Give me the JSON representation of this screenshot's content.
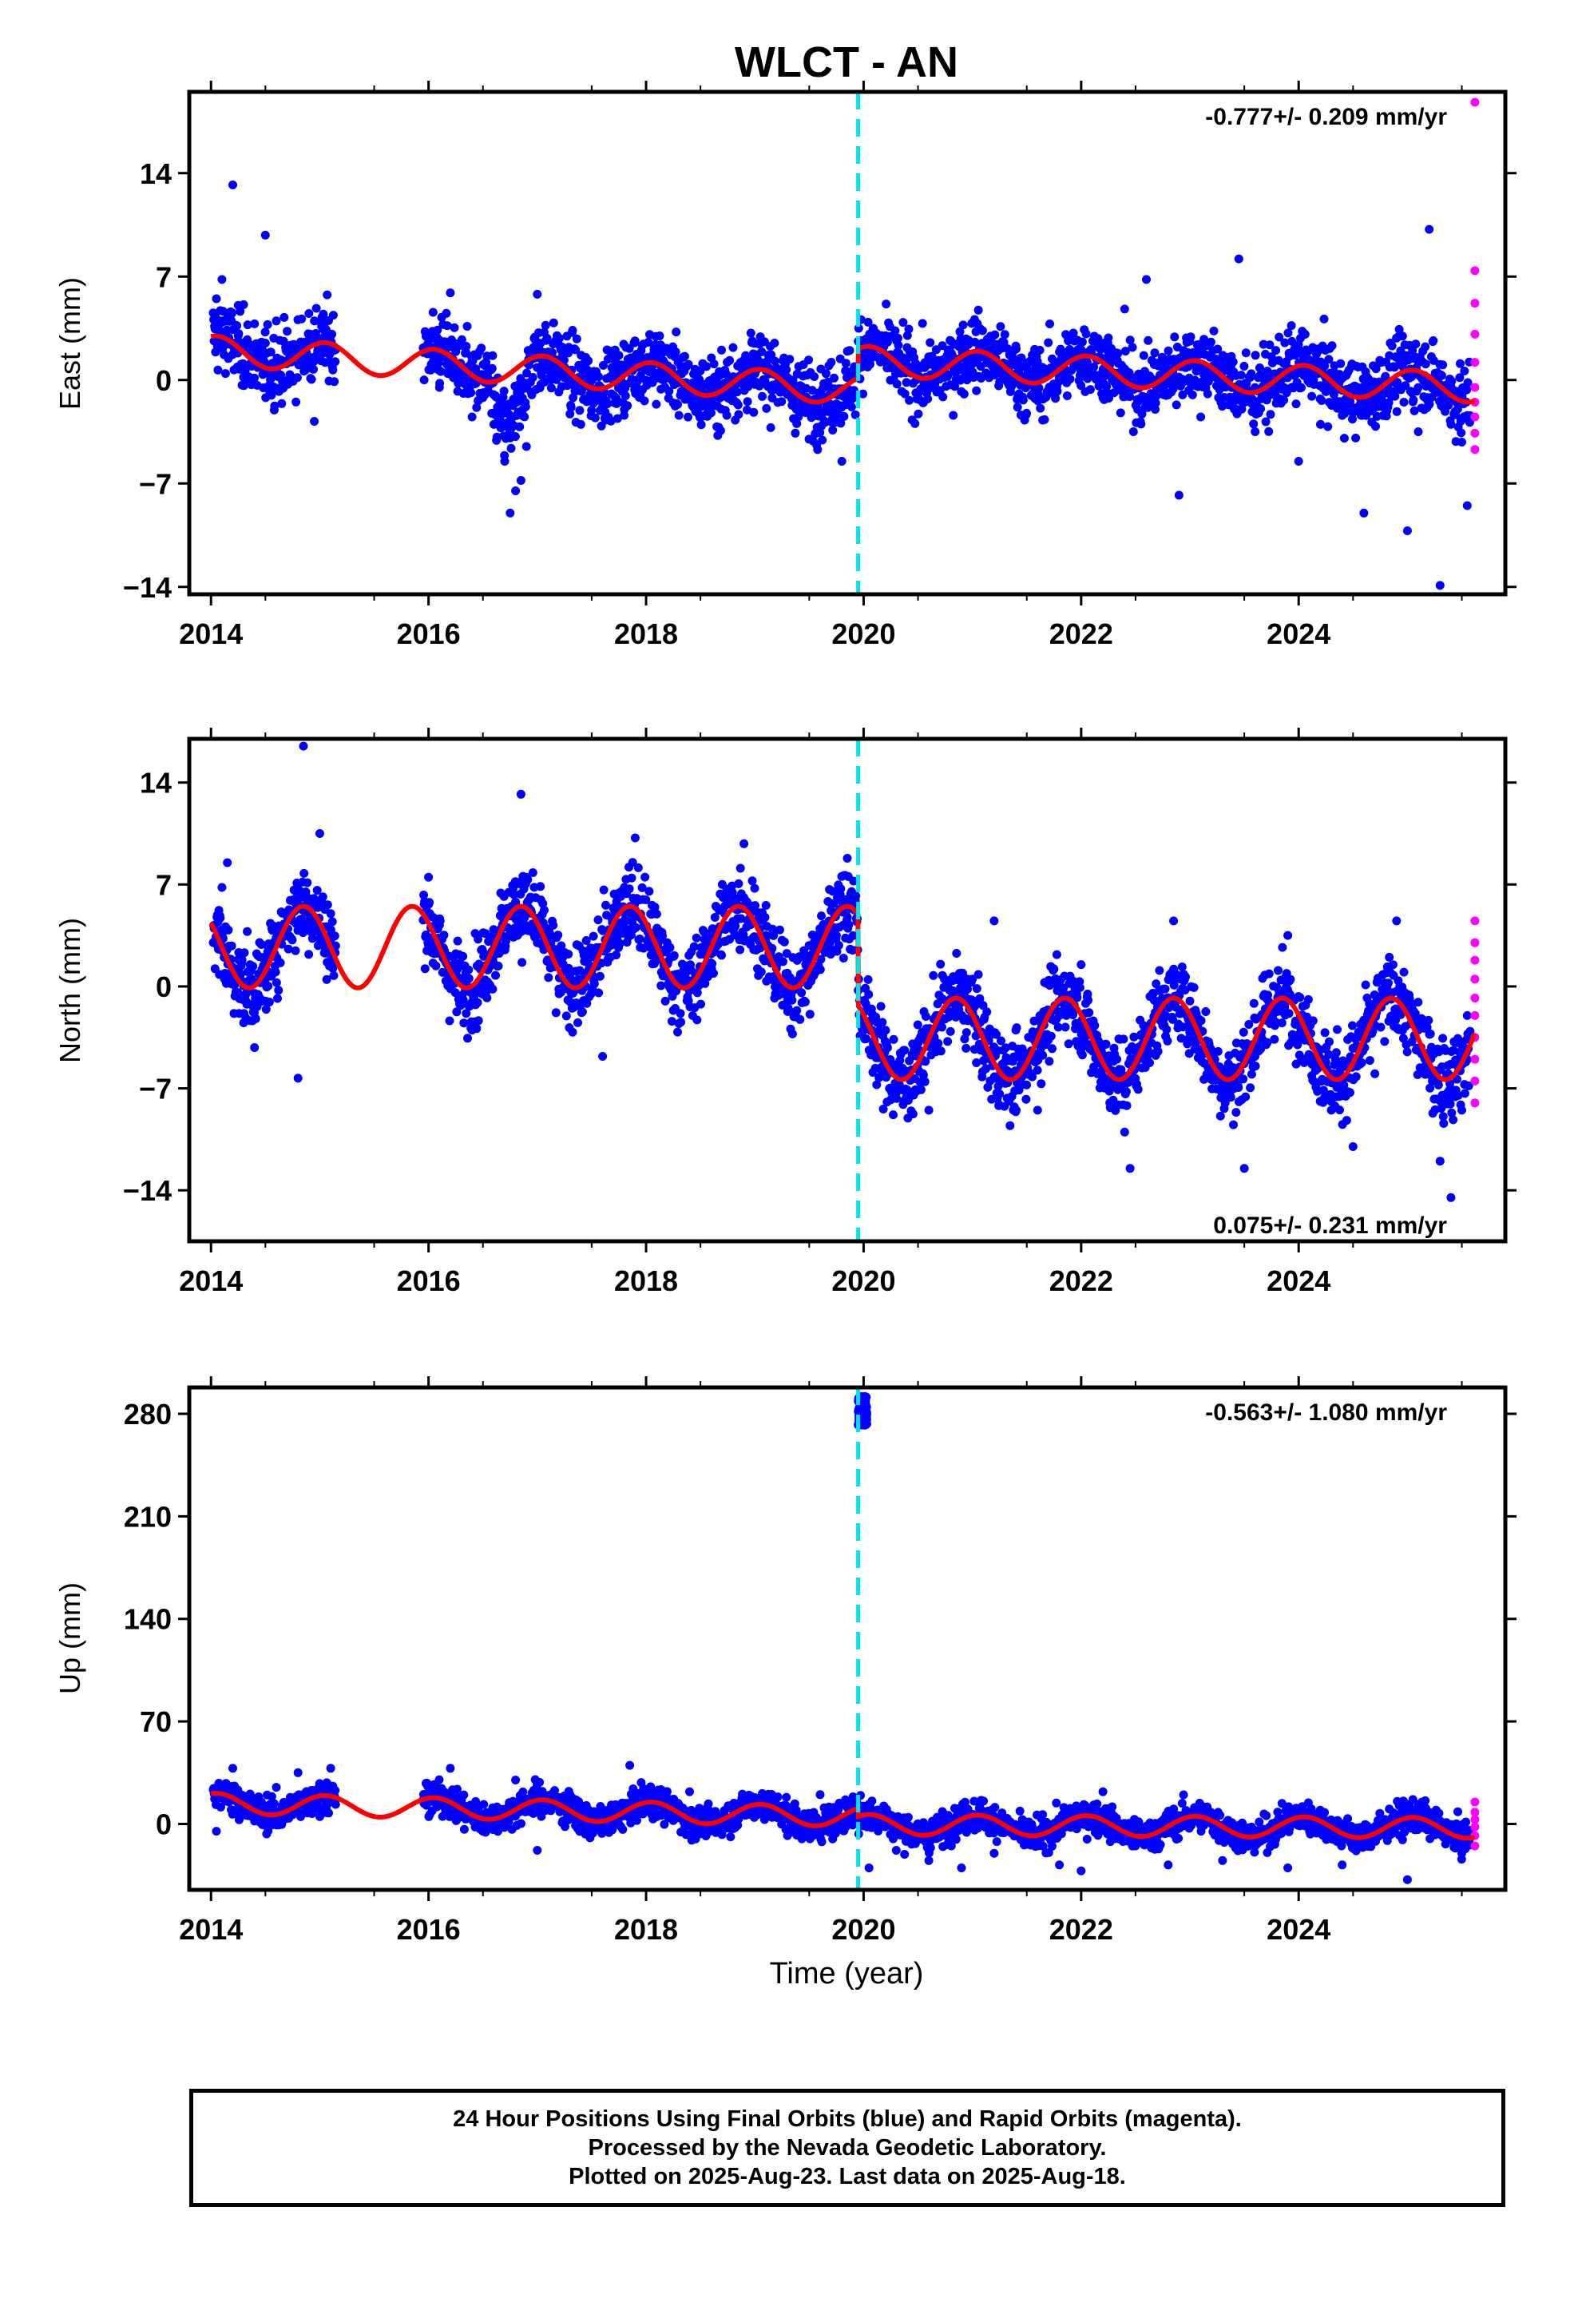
{
  "title": "WLCT - AN",
  "xlabel": "Time (year)",
  "colors": {
    "final_orbits": "#0000ff",
    "rapid_orbits": "#ff00ff",
    "model": "#ff0000",
    "offset_line": "#00e5e5",
    "frame": "#000000"
  },
  "x_ticks": [
    "2014",
    "2016",
    "2018",
    "2020",
    "2022",
    "2024"
  ],
  "chart_data": [
    {
      "type": "scatter",
      "ylabel": "East (mm)",
      "xlim": [
        2013.8,
        2025.9
      ],
      "ylim": [
        -14.5,
        19.5
      ],
      "y_ticks": [
        -14,
        -7,
        0,
        7,
        14
      ],
      "y_tick_labels": [
        "−14",
        "−7",
        "0",
        "7",
        "14"
      ],
      "rate_label": "-0.777+/- 0.209 mm/yr",
      "rate_position": "top-right",
      "offset_epoch": 2019.95,
      "series": [
        {
          "role": "final",
          "points": [
            [
              2014.05,
              5.5
            ],
            [
              2014.1,
              6.8
            ],
            [
              2014.15,
              4.2
            ],
            [
              2014.2,
              13.2
            ],
            [
              2014.25,
              3.0
            ],
            [
              2014.3,
              5.1
            ],
            [
              2014.4,
              3.8
            ],
            [
              2014.5,
              2.5
            ],
            [
              2014.6,
              4.0
            ],
            [
              2014.7,
              3.3
            ],
            [
              2014.8,
              2.1
            ],
            [
              2014.9,
              4.5
            ],
            [
              2015.0,
              2.8
            ],
            [
              2015.1,
              1.2
            ],
            [
              2015.05,
              3.5
            ],
            [
              2014.95,
              -2.8
            ],
            [
              2014.5,
              9.8
            ],
            [
              2016.0,
              3.1
            ],
            [
              2016.1,
              -0.5
            ],
            [
              2016.2,
              5.9
            ],
            [
              2016.3,
              1.0
            ],
            [
              2016.4,
              -2.5
            ],
            [
              2016.5,
              -1.2
            ],
            [
              2016.6,
              -3.0
            ],
            [
              2016.7,
              -5.5
            ],
            [
              2016.75,
              -9.0
            ],
            [
              2016.8,
              -7.5
            ],
            [
              2016.85,
              -6.8
            ],
            [
              2016.9,
              -4.5
            ],
            [
              2016.95,
              -1.0
            ],
            [
              2017.0,
              5.8
            ],
            [
              2017.1,
              1.9
            ],
            [
              2017.2,
              0.5
            ],
            [
              2017.3,
              -2.3
            ],
            [
              2017.4,
              -3.0
            ],
            [
              2017.6,
              -1.5
            ],
            [
              2017.8,
              -2.0
            ],
            [
              2018.0,
              1.2
            ],
            [
              2018.2,
              0.5
            ],
            [
              2018.4,
              -0.8
            ],
            [
              2018.6,
              1.5
            ],
            [
              2018.8,
              2.2
            ],
            [
              2019.0,
              -0.3
            ],
            [
              2019.2,
              0.8
            ],
            [
              2019.4,
              -2.5
            ],
            [
              2019.6,
              -1.4
            ],
            [
              2019.8,
              -5.5
            ],
            [
              2019.9,
              -1.0
            ],
            [
              2020.05,
              1.8
            ],
            [
              2020.2,
              3.0
            ],
            [
              2020.4,
              2.2
            ],
            [
              2020.6,
              0.2
            ],
            [
              2020.9,
              1.5
            ],
            [
              2021.2,
              0.9
            ],
            [
              2021.4,
              2.3
            ],
            [
              2021.6,
              -0.5
            ],
            [
              2021.8,
              1.9
            ],
            [
              2022.0,
              0.8
            ],
            [
              2022.2,
              -1.2
            ],
            [
              2022.4,
              4.8
            ],
            [
              2022.6,
              6.8
            ],
            [
              2022.8,
              -1.0
            ],
            [
              2022.9,
              -7.8
            ],
            [
              2023.1,
              -2.5
            ],
            [
              2023.3,
              -0.4
            ],
            [
              2023.45,
              8.2
            ],
            [
              2023.6,
              -3.5
            ],
            [
              2023.8,
              -1.2
            ],
            [
              2024.0,
              -5.5
            ],
            [
              2024.2,
              -3.0
            ],
            [
              2024.4,
              -2.4
            ],
            [
              2024.6,
              -9.0
            ],
            [
              2024.8,
              -2.0
            ],
            [
              2025.0,
              -10.2
            ],
            [
              2025.1,
              -3.5
            ],
            [
              2025.2,
              10.2
            ],
            [
              2025.3,
              -13.9
            ],
            [
              2025.4,
              -3.0
            ],
            [
              2025.5,
              -4.2
            ],
            [
              2025.55,
              -8.5
            ]
          ]
        },
        {
          "role": "rapid",
          "points": [
            [
              2025.62,
              18.8
            ],
            [
              2025.62,
              7.4
            ],
            [
              2025.62,
              5.2
            ],
            [
              2025.62,
              3.1
            ],
            [
              2025.62,
              1.2
            ],
            [
              2025.62,
              -0.5
            ],
            [
              2025.62,
              -1.5
            ],
            [
              2025.62,
              -2.5
            ],
            [
              2025.62,
              -3.6
            ],
            [
              2025.62,
              -4.7
            ]
          ]
        }
      ]
    },
    {
      "type": "scatter",
      "ylabel": "North (mm)",
      "xlim": [
        2013.8,
        2025.9
      ],
      "ylim": [
        -17.5,
        17.0
      ],
      "y_ticks": [
        -14,
        -7,
        0,
        7,
        14
      ],
      "y_tick_labels": [
        "−14",
        "−7",
        "0",
        "7",
        "14"
      ],
      "rate_label": "0.075+/- 0.231 mm/yr",
      "rate_position": "bottom-right",
      "offset_epoch": 2019.95,
      "series": [
        {
          "role": "final",
          "points": [
            [
              2014.05,
              3.0
            ],
            [
              2014.1,
              6.8
            ],
            [
              2014.15,
              8.5
            ],
            [
              2014.3,
              -2.5
            ],
            [
              2014.4,
              -4.2
            ],
            [
              2014.5,
              -1.0
            ],
            [
              2014.6,
              2.0
            ],
            [
              2014.8,
              -6.3
            ],
            [
              2014.9,
              5.5
            ],
            [
              2014.85,
              16.5
            ],
            [
              2015.0,
              10.5
            ],
            [
              2015.1,
              5.0
            ],
            [
              2016.0,
              7.5
            ],
            [
              2016.1,
              4.2
            ],
            [
              2016.3,
              -1.0
            ],
            [
              2016.4,
              -3.0
            ],
            [
              2016.6,
              3.5
            ],
            [
              2016.8,
              5.8
            ],
            [
              2016.85,
              13.2
            ],
            [
              2017.0,
              3.0
            ],
            [
              2017.2,
              -0.5
            ],
            [
              2017.5,
              0.8
            ],
            [
              2017.6,
              -4.8
            ],
            [
              2017.8,
              6.8
            ],
            [
              2017.9,
              10.2
            ],
            [
              2018.1,
              4.0
            ],
            [
              2018.3,
              0.0
            ],
            [
              2018.5,
              2.2
            ],
            [
              2018.7,
              7.0
            ],
            [
              2018.9,
              9.8
            ],
            [
              2019.1,
              3.5
            ],
            [
              2019.3,
              -1.0
            ],
            [
              2019.5,
              1.5
            ],
            [
              2019.7,
              5.2
            ],
            [
              2019.85,
              8.8
            ],
            [
              2020.05,
              -2.5
            ],
            [
              2020.2,
              -5.0
            ],
            [
              2020.4,
              -7.5
            ],
            [
              2020.6,
              -8.5
            ],
            [
              2020.8,
              -2.0
            ],
            [
              2021.0,
              0.5
            ],
            [
              2021.2,
              4.5
            ],
            [
              2021.4,
              -3.0
            ],
            [
              2021.6,
              -8.5
            ],
            [
              2021.8,
              -2.0
            ],
            [
              2022.0,
              1.5
            ],
            [
              2022.2,
              -4.0
            ],
            [
              2022.4,
              -10.0
            ],
            [
              2022.45,
              -12.5
            ],
            [
              2022.6,
              -3.0
            ],
            [
              2022.85,
              4.5
            ],
            [
              2023.0,
              -1.0
            ],
            [
              2023.2,
              -6.0
            ],
            [
              2023.4,
              -9.5
            ],
            [
              2023.5,
              -12.5
            ],
            [
              2023.7,
              -4.0
            ],
            [
              2023.9,
              3.5
            ],
            [
              2024.1,
              -2.5
            ],
            [
              2024.3,
              -8.5
            ],
            [
              2024.5,
              -11.0
            ],
            [
              2024.7,
              -6.0
            ],
            [
              2024.9,
              4.5
            ],
            [
              2025.1,
              -3.0
            ],
            [
              2025.3,
              -12.0
            ],
            [
              2025.4,
              -14.5
            ],
            [
              2025.5,
              -8.5
            ],
            [
              2025.55,
              -2.0
            ]
          ]
        },
        {
          "role": "rapid",
          "points": [
            [
              2025.62,
              4.5
            ],
            [
              2025.62,
              3.0
            ],
            [
              2025.62,
              1.8
            ],
            [
              2025.62,
              0.5
            ],
            [
              2025.62,
              -0.8
            ],
            [
              2025.62,
              -2.0
            ],
            [
              2025.62,
              -3.5
            ],
            [
              2025.62,
              -5.0
            ],
            [
              2025.62,
              -6.5
            ],
            [
              2025.62,
              -8.0
            ]
          ]
        }
      ]
    },
    {
      "type": "scatter",
      "ylabel": "Up (mm)",
      "xlim": [
        2013.8,
        2025.9
      ],
      "ylim": [
        -45,
        298
      ],
      "y_ticks": [
        0,
        70,
        140,
        210,
        280
      ],
      "y_tick_labels": [
        "0",
        "70",
        "140",
        "210",
        "280"
      ],
      "rate_label": "-0.563+/- 1.080 mm/yr",
      "rate_position": "top-right",
      "offset_epoch": 2019.95,
      "series": [
        {
          "role": "final",
          "points": [
            [
              2014.05,
              -5.0
            ],
            [
              2014.1,
              20.0
            ],
            [
              2014.2,
              38.0
            ],
            [
              2014.4,
              2.0
            ],
            [
              2014.6,
              25.0
            ],
            [
              2014.8,
              35.0
            ],
            [
              2015.0,
              5.0
            ],
            [
              2015.1,
              38.0
            ],
            [
              2016.0,
              20.0
            ],
            [
              2016.2,
              38.0
            ],
            [
              2016.5,
              -5.0
            ],
            [
              2016.8,
              30.0
            ],
            [
              2017.0,
              -18.0
            ],
            [
              2017.3,
              20.0
            ],
            [
              2017.6,
              -5.0
            ],
            [
              2017.85,
              40.0
            ],
            [
              2018.1,
              5.0
            ],
            [
              2018.4,
              22.0
            ],
            [
              2018.7,
              -3.0
            ],
            [
              2019.0,
              18.0
            ],
            [
              2019.3,
              -8.0
            ],
            [
              2019.6,
              20.0
            ],
            [
              2019.85,
              2.0
            ],
            [
              2019.96,
              282.0
            ],
            [
              2019.97,
              290.0
            ],
            [
              2019.99,
              275.0
            ],
            [
              2020.02,
              286.0
            ],
            [
              2020.05,
              -30.0
            ],
            [
              2020.3,
              -18.0
            ],
            [
              2020.6,
              -25.0
            ],
            [
              2020.9,
              -30.0
            ],
            [
              2021.2,
              -20.0
            ],
            [
              2021.5,
              -10.0
            ],
            [
              2021.8,
              -28.0
            ],
            [
              2022.0,
              -32.0
            ],
            [
              2022.2,
              22.0
            ],
            [
              2022.5,
              -15.0
            ],
            [
              2022.8,
              -28.0
            ],
            [
              2023.0,
              5.0
            ],
            [
              2023.3,
              -25.0
            ],
            [
              2023.6,
              -15.0
            ],
            [
              2023.9,
              -30.0
            ],
            [
              2024.1,
              -5.0
            ],
            [
              2024.4,
              -28.0
            ],
            [
              2024.7,
              -10.0
            ],
            [
              2025.0,
              -38.0
            ],
            [
              2025.3,
              -5.0
            ],
            [
              2025.5,
              -20.0
            ]
          ]
        },
        {
          "role": "rapid",
          "points": [
            [
              2025.62,
              15.0
            ],
            [
              2025.62,
              8.0
            ],
            [
              2025.62,
              3.0
            ],
            [
              2025.62,
              -2.0
            ],
            [
              2025.62,
              -8.0
            ],
            [
              2025.62,
              -15.0
            ]
          ]
        }
      ]
    }
  ],
  "footer": {
    "line1": "24 Hour Positions Using Final Orbits (blue) and Rapid Orbits (magenta).",
    "line2": "Processed by the Nevada Geodetic Laboratory.",
    "line3": "Plotted on 2025-Aug-23. Last data on 2025-Aug-18."
  }
}
